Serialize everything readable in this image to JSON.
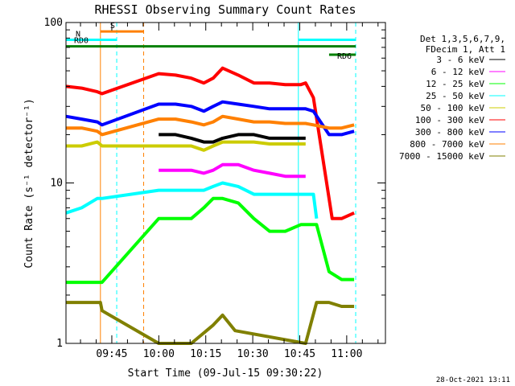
{
  "chart_data": {
    "type": "line",
    "title": "RHESSI Observing Summary Count Rates",
    "xlabel": "Start Time (09-Jul-15 09:30:22)",
    "ylabel": "Count Rate (s⁻¹ detector⁻¹)",
    "yscale": "log",
    "ylim": [
      1,
      100
    ],
    "xlim_minutes": [
      0,
      102
    ],
    "y_ticks": [
      {
        "value": 1,
        "label": "1"
      },
      {
        "value": 10,
        "label": "10"
      },
      {
        "value": 100,
        "label": "100"
      }
    ],
    "x_ticks": [
      {
        "t": 14.633,
        "label": "09:45"
      },
      {
        "t": 29.633,
        "label": "10:00"
      },
      {
        "t": 44.633,
        "label": "10:15"
      },
      {
        "t": 59.633,
        "label": "10:30"
      },
      {
        "t": 74.633,
        "label": "10:45"
      },
      {
        "t": 89.633,
        "label": "11:00"
      }
    ],
    "legend_header": [
      "Det 1,3,5,6,7,9,",
      "FDecim 1, Att 1"
    ],
    "series": [
      {
        "name": "3 - 6 keV",
        "color": "#000000",
        "t": [
          29.6,
          35,
          40,
          44,
          47,
          50,
          55,
          60,
          65,
          70,
          75,
          76.5
        ],
        "values": [
          20,
          20,
          19,
          18,
          18,
          19,
          20,
          20,
          19,
          19,
          19,
          19
        ]
      },
      {
        "name": "6 - 12 keV",
        "color": "#ff00ff",
        "t": [
          29.6,
          35,
          40,
          44,
          47,
          50,
          55,
          60,
          65,
          70,
          75,
          76.5
        ],
        "values": [
          12,
          12,
          12,
          11.5,
          12,
          13,
          13,
          12,
          11.5,
          11,
          11,
          11
        ]
      },
      {
        "name": "12 - 25 keV",
        "color": "#00ff00",
        "t": [
          0,
          6,
          11,
          11.5,
          29.6,
          35,
          40,
          44,
          47,
          50,
          55,
          60,
          65,
          70,
          75,
          76.5,
          80,
          84,
          88,
          92
        ],
        "values": [
          2.4,
          2.4,
          2.4,
          2.4,
          6,
          6,
          6,
          7,
          8,
          8,
          7.5,
          6,
          5,
          5,
          5.5,
          5.5,
          5.5,
          2.8,
          2.5,
          2.5
        ]
      },
      {
        "name": "25 - 50 keV",
        "color": "#00ffff",
        "t": [
          0,
          5,
          10,
          11.5,
          29.6,
          35,
          40,
          44,
          47,
          50,
          55,
          60,
          65,
          70,
          75,
          76.5,
          79,
          80
        ],
        "values": [
          6.5,
          7,
          8,
          8,
          9,
          9,
          9,
          9,
          9.5,
          10,
          9.5,
          8.5,
          8.5,
          8.5,
          8.5,
          8.5,
          8.5,
          6
        ]
      },
      {
        "name": "50 - 100 keV",
        "color": "#cccc00",
        "t": [
          0,
          5,
          10,
          11.5,
          29.6,
          35,
          40,
          44,
          47,
          50,
          55,
          60,
          65,
          70,
          75,
          76.5
        ],
        "values": [
          17,
          17,
          18,
          17,
          17,
          17,
          17,
          16,
          17,
          18,
          18,
          18,
          17.5,
          17.5,
          17.5,
          17.5
        ]
      },
      {
        "name": "100 - 300 keV",
        "color": "#ff0000",
        "t": [
          0,
          5,
          10,
          11.5,
          29.6,
          35,
          40,
          44,
          47,
          50,
          55,
          60,
          65,
          70,
          75,
          76.5,
          79,
          85,
          88,
          92
        ],
        "values": [
          40,
          39,
          37,
          36,
          48,
          47,
          45,
          42,
          45,
          52,
          47,
          42,
          42,
          41,
          41,
          42,
          34,
          6,
          6,
          6.5
        ]
      },
      {
        "name": "300 - 800 keV",
        "color": "#0000ff",
        "t": [
          0,
          5,
          10,
          11.5,
          29.6,
          35,
          40,
          44,
          47,
          50,
          55,
          60,
          65,
          70,
          75,
          76.5,
          79,
          84,
          88,
          92
        ],
        "values": [
          26,
          25,
          24,
          23,
          31,
          31,
          30,
          28,
          30,
          32,
          31,
          30,
          29,
          29,
          29,
          29,
          28,
          20,
          20,
          21
        ]
      },
      {
        "name": "800 - 7000 keV",
        "color": "#ff8000",
        "t": [
          0,
          5,
          10,
          11.5,
          29.6,
          35,
          40,
          44,
          47,
          50,
          55,
          60,
          65,
          70,
          75,
          76.5,
          79,
          84,
          88,
          92
        ],
        "values": [
          22,
          22,
          21,
          20,
          25,
          25,
          24,
          23,
          24,
          26,
          25,
          24,
          24,
          23.5,
          23.5,
          23.5,
          23,
          22,
          22,
          23
        ]
      },
      {
        "name": "7000 - 15000 keV",
        "color": "#808000",
        "t": [
          0,
          6,
          11,
          11.5,
          29.6,
          40,
          47,
          50,
          54,
          76.5,
          80,
          84,
          88,
          92
        ],
        "values": [
          1.8,
          1.8,
          1.8,
          1.6,
          1,
          1,
          1.3,
          1.5,
          1.2,
          1,
          1.8,
          1.8,
          1.7,
          1.7
        ]
      }
    ],
    "flags": [
      {
        "label": "S",
        "color": "#ff8000",
        "t_start": 11.0,
        "t_end": 24.8,
        "level": 88
      },
      {
        "label": "N",
        "color": "#00ffff",
        "t_start": 0.0,
        "t_end": 16.2,
        "level": 78
      },
      {
        "label": "",
        "color": "#00ffff",
        "t_start": 74.2,
        "t_end": 92.5,
        "level": 78
      },
      {
        "label": "RD0",
        "color": "#008000",
        "t_start": 0.0,
        "t_end": 92.5,
        "level": 71
      },
      {
        "label": "RD6",
        "color": "#008000",
        "t_start": 84.0,
        "t_end": 92.5,
        "level": 63
      }
    ],
    "vertical_markers": [
      {
        "t": 11.0,
        "color": "#ff8000",
        "style": "solid"
      },
      {
        "t": 16.2,
        "color": "#00ffff",
        "style": "dashed"
      },
      {
        "t": 24.8,
        "color": "#ff8000",
        "style": "dashed"
      },
      {
        "t": 74.2,
        "color": "#00ffff",
        "style": "solid"
      },
      {
        "t": 92.5,
        "color": "#00ffff",
        "style": "dashed"
      }
    ]
  },
  "footer": {
    "timestamp": "28-Oct-2021 13:11"
  }
}
